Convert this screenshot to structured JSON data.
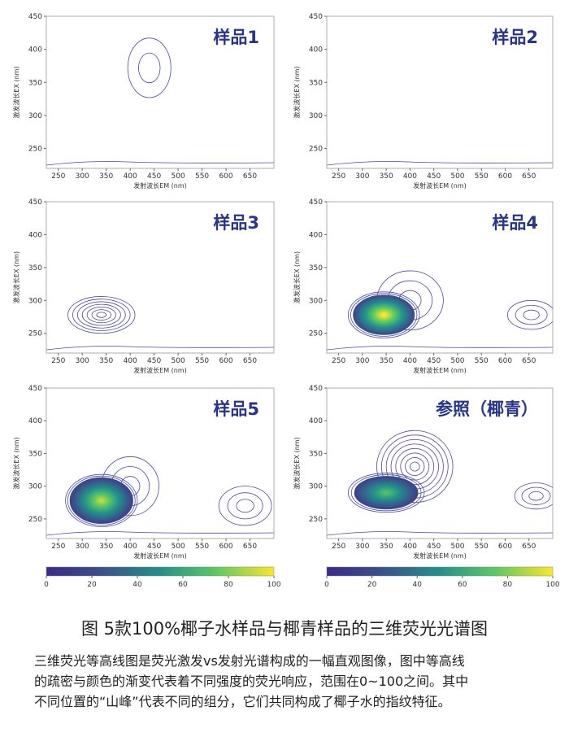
{
  "panels": [
    {
      "title": "样品1",
      "xlabel": "发射波长EM (nm)",
      "ylabel": "激发波长EX (nm)",
      "xlim": [
        225,
        700
      ],
      "xticks": [
        250,
        300,
        350,
        400,
        450,
        500,
        550,
        600,
        650
      ],
      "ylim": [
        220,
        450
      ],
      "yticks": [
        250,
        300,
        350,
        400,
        450
      ],
      "peaks": [
        {
          "em": 440,
          "ex": 372,
          "rx": 45,
          "ry": 45,
          "levels": 2,
          "intensity": 5
        }
      ]
    },
    {
      "title": "样品2",
      "xlabel": "发射波长EM (nm)",
      "ylabel": "激发波长EX (nm)",
      "xlim": [
        225,
        700
      ],
      "xticks": [
        250,
        300,
        350,
        400,
        450,
        500,
        550,
        600,
        650
      ],
      "ylim": [
        220,
        450
      ],
      "yticks": [
        250,
        300,
        350,
        400,
        450
      ],
      "peaks": []
    },
    {
      "title": "样品3",
      "xlabel": "发射波长EM (nm)",
      "ylabel": "激发波长EX (nm)",
      "xlim": [
        225,
        700
      ],
      "xticks": [
        250,
        300,
        350,
        400,
        450,
        500,
        550,
        600,
        650
      ],
      "ylim": [
        220,
        450
      ],
      "yticks": [
        250,
        300,
        350,
        400,
        450
      ],
      "peaks": [
        {
          "em": 340,
          "ex": 278,
          "rx": 70,
          "ry": 28,
          "levels": 7,
          "intensity": 12
        }
      ]
    },
    {
      "title": "样品4",
      "xlabel": "发射波长EM (nm)",
      "ylabel": "激发波长EX (nm)",
      "xlim": [
        225,
        700
      ],
      "xticks": [
        250,
        300,
        350,
        400,
        450,
        500,
        550,
        600,
        650
      ],
      "ylim": [
        220,
        450
      ],
      "yticks": [
        250,
        300,
        350,
        400,
        450
      ],
      "peaks": [
        {
          "em": 400,
          "ex": 300,
          "rx": 70,
          "ry": 45,
          "levels": 3,
          "intensity": 6
        },
        {
          "em": 345,
          "ex": 278,
          "rx": 75,
          "ry": 35,
          "levels": 14,
          "intensity": 100
        },
        {
          "em": 655,
          "ex": 278,
          "rx": 50,
          "ry": 22,
          "levels": 3,
          "intensity": 5
        }
      ]
    },
    {
      "title": "样品5",
      "xlabel": "发射波长EM (nm)",
      "ylabel": "激发波长EX (nm)",
      "xlim": [
        225,
        700
      ],
      "xticks": [
        250,
        300,
        350,
        400,
        450,
        500,
        550,
        600,
        650
      ],
      "ylim": [
        220,
        450
      ],
      "yticks": [
        250,
        300,
        350,
        400,
        450
      ],
      "peaks": [
        {
          "em": 400,
          "ex": 300,
          "rx": 60,
          "ry": 45,
          "levels": 3,
          "intensity": 6
        },
        {
          "em": 340,
          "ex": 278,
          "rx": 75,
          "ry": 40,
          "levels": 16,
          "intensity": 90
        },
        {
          "em": 640,
          "ex": 270,
          "rx": 55,
          "ry": 30,
          "levels": 3,
          "intensity": 5
        }
      ]
    },
    {
      "title": "参照（椰青）",
      "xlabel": "发射波长EM (nm)",
      "ylabel": "激发波长EX (nm)",
      "xlim": [
        225,
        700
      ],
      "xticks": [
        250,
        300,
        350,
        400,
        450,
        500,
        550,
        600,
        650
      ],
      "ylim": [
        220,
        450
      ],
      "yticks": [
        250,
        300,
        350,
        400,
        450
      ],
      "peaks": [
        {
          "em": 410,
          "ex": 330,
          "rx": 80,
          "ry": 55,
          "levels": 8,
          "intensity": 12
        },
        {
          "em": 350,
          "ex": 290,
          "rx": 80,
          "ry": 30,
          "levels": 12,
          "intensity": 70
        },
        {
          "em": 665,
          "ex": 285,
          "rx": 45,
          "ry": 20,
          "levels": 3,
          "intensity": 5
        }
      ]
    }
  ],
  "colorbars": [
    {
      "lim": [
        0,
        100
      ],
      "ticks": [
        0,
        20,
        40,
        60,
        80,
        100
      ],
      "colormap": [
        "#3a2a8c",
        "#3b528b",
        "#21918c",
        "#5ec962",
        "#fde725"
      ]
    },
    {
      "lim": [
        0,
        100
      ],
      "ticks": [
        0,
        20,
        40,
        60,
        80,
        100
      ],
      "colormap": [
        "#3a2a8c",
        "#3b528b",
        "#21918c",
        "#5ec962",
        "#fde725"
      ]
    }
  ],
  "caption": "图  5款100%椰子水样品与椰青样品的三维荧光光谱图",
  "paragraph": [
    "三维荧光等高线图是荧光激发vs发射光谱构成的一幅直观图像，图中等高线",
    "的疏密与颜色的渐变代表着不同强度的荧光响应，范围在0~100之间。其中",
    "不同位置的“山峰”代表不同的组分，它们共同构成了椰子水的指纹特征。"
  ]
}
